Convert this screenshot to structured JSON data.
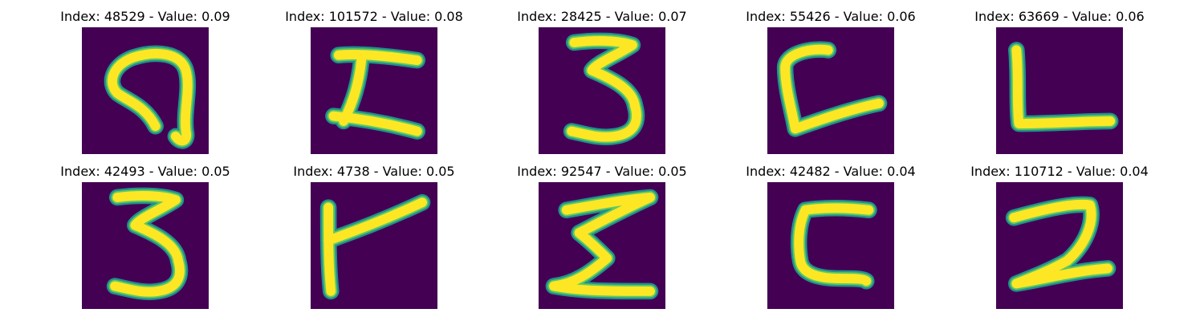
{
  "colors": {
    "background": "#440154",
    "stroke_core": "#fde725",
    "stroke_mid": "#5ec962",
    "stroke_edge": "#21918c"
  },
  "panels": [
    {
      "title": "Index: 48529 - Value: 0.09",
      "glyph": "hook-9-shape"
    },
    {
      "title": "Index: 101572 - Value: 0.08",
      "glyph": "i-beam-shape"
    },
    {
      "title": "Index: 28425 - Value: 0.07",
      "glyph": "three-shape"
    },
    {
      "title": "Index: 55426 - Value: 0.06",
      "glyph": "slanted-l-shape"
    },
    {
      "title": "Index: 63669 - Value: 0.06",
      "glyph": "l-shape"
    },
    {
      "title": "Index: 42493 - Value: 0.05",
      "glyph": "three-shape"
    },
    {
      "title": "Index: 4738 - Value: 0.05",
      "glyph": "flag-shape"
    },
    {
      "title": "Index: 92547 - Value: 0.05",
      "glyph": "sigma-shape"
    },
    {
      "title": "Index: 42482 - Value: 0.04",
      "glyph": "c-bracket-shape"
    },
    {
      "title": "Index: 110712 - Value: 0.04",
      "glyph": "two-shape"
    }
  ]
}
